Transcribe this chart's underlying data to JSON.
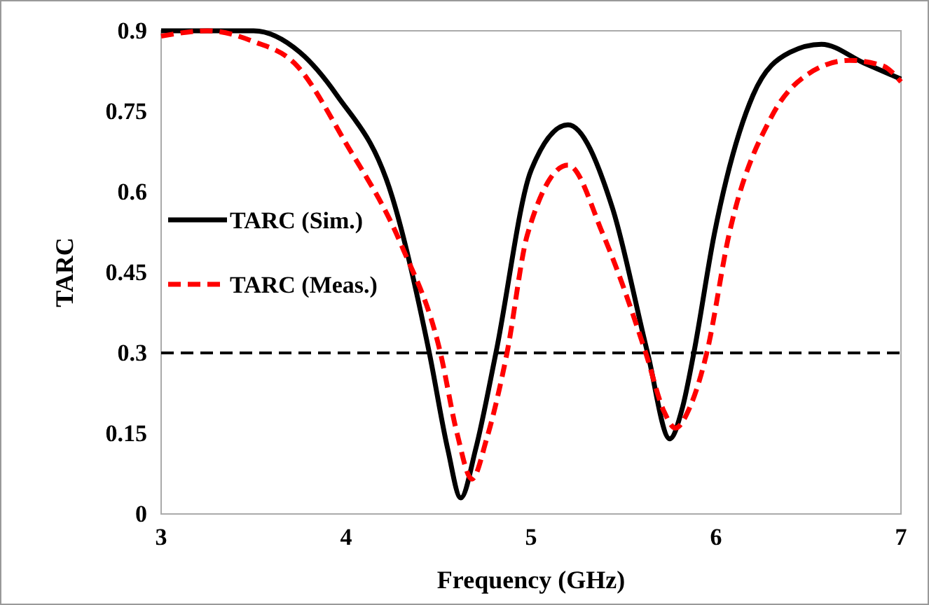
{
  "chart_data": {
    "type": "line",
    "xlabel": "Frequency (GHz)",
    "ylabel": "TARC",
    "xlim": [
      3,
      7
    ],
    "ylim": [
      0,
      0.9
    ],
    "xticks": [
      3,
      4,
      5,
      6,
      7
    ],
    "yticks": [
      0,
      0.15,
      0.3,
      0.45,
      0.6,
      0.75,
      0.9
    ],
    "grid": false,
    "legend": "left",
    "marker": "none",
    "ref_lines": [
      {
        "axis": "y",
        "value": 0.3,
        "color": "#000000",
        "line_style": "dashed"
      }
    ],
    "series": [
      {
        "name": "TARC (Sim.)",
        "color": "#000000",
        "line_style": "solid",
        "x": [
          3,
          3.25,
          3.5,
          3.75,
          3.95,
          4.25,
          4.45,
          4.55,
          4.62,
          4.7,
          4.81,
          5.0,
          5.2,
          5.44,
          5.63,
          5.75,
          5.82,
          5.88,
          5.99,
          6.2,
          6.4,
          6.57,
          6.8,
          7
        ],
        "values": [
          0.9,
          0.9,
          0.9,
          0.86,
          0.78,
          0.59,
          0.3,
          0.12,
          0.03,
          0.12,
          0.3,
          0.64,
          0.725,
          0.57,
          0.3,
          0.14,
          0.2,
          0.3,
          0.52,
          0.78,
          0.86,
          0.875,
          0.84,
          0.81
        ]
      },
      {
        "name": "TARC (Meas.)",
        "color": "#ff0000",
        "line_style": "dashed",
        "x": [
          3,
          3.25,
          3.5,
          3.72,
          4,
          4.3,
          4.51,
          4.6,
          4.68,
          4.76,
          4.87,
          4.98,
          5.2,
          5.39,
          5.62,
          5.72,
          5.78,
          5.86,
          5.95,
          6.07,
          6.3,
          6.5,
          6.72,
          6.9,
          7
        ],
        "values": [
          0.89,
          0.9,
          0.88,
          0.84,
          0.69,
          0.5,
          0.3,
          0.15,
          0.065,
          0.14,
          0.3,
          0.52,
          0.65,
          0.52,
          0.3,
          0.19,
          0.16,
          0.2,
          0.3,
          0.52,
          0.74,
          0.82,
          0.845,
          0.835,
          0.805
        ]
      }
    ]
  }
}
